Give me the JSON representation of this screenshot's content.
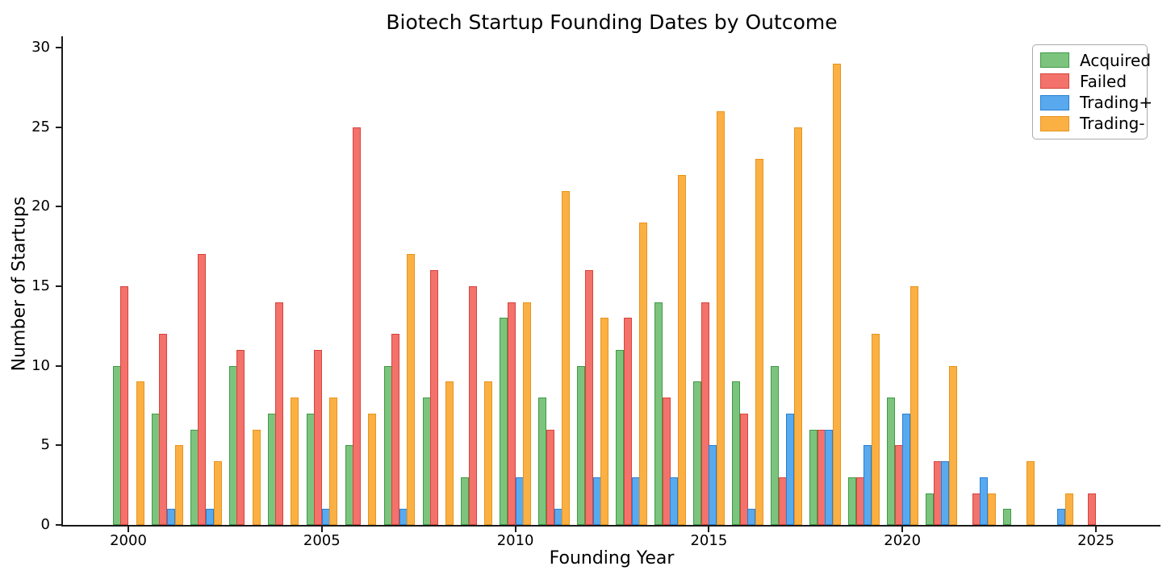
{
  "chart_data": {
    "type": "bar",
    "title": "Biotech Startup Founding Dates by Outcome",
    "xlabel": "Founding Year",
    "ylabel": "Number of Startups",
    "ylim": [
      0,
      30
    ],
    "yticks": [
      0,
      5,
      10,
      15,
      20,
      25,
      30
    ],
    "xticks": [
      2000,
      2005,
      2010,
      2015,
      2020,
      2025
    ],
    "grid": false,
    "legend_position": "upper right",
    "categories": [
      2000,
      2001,
      2002,
      2003,
      2004,
      2005,
      2006,
      2007,
      2008,
      2009,
      2010,
      2011,
      2012,
      2013,
      2014,
      2015,
      2016,
      2017,
      2018,
      2019,
      2020,
      2021,
      2022,
      2023,
      2024,
      2025
    ],
    "series": [
      {
        "name": "Acquired",
        "fill": "#7cc47e",
        "edge": "#3f9a46",
        "values": [
          10,
          7,
          6,
          10,
          7,
          7,
          5,
          10,
          8,
          3,
          13,
          8,
          10,
          11,
          14,
          9,
          9,
          10,
          6,
          3,
          8,
          2,
          0,
          1,
          0,
          0
        ]
      },
      {
        "name": "Failed",
        "fill": "#f3726b",
        "edge": "#d6453c",
        "values": [
          15,
          12,
          17,
          11,
          14,
          11,
          25,
          12,
          16,
          15,
          14,
          6,
          16,
          13,
          8,
          14,
          7,
          3,
          6,
          3,
          5,
          4,
          2,
          0,
          0,
          2
        ]
      },
      {
        "name": "Trading+",
        "fill": "#58a9ee",
        "edge": "#2a7fd0",
        "values": [
          0,
          1,
          1,
          0,
          0,
          1,
          0,
          1,
          0,
          0,
          3,
          1,
          3,
          3,
          3,
          5,
          1,
          7,
          6,
          5,
          7,
          4,
          3,
          0,
          1,
          0
        ]
      },
      {
        "name": "Trading-",
        "fill": "#fbb044",
        "edge": "#e8941c",
        "values": [
          9,
          5,
          4,
          6,
          8,
          8,
          7,
          17,
          9,
          9,
          14,
          21,
          13,
          19,
          22,
          26,
          23,
          25,
          29,
          12,
          15,
          10,
          2,
          4,
          2,
          0
        ]
      }
    ]
  }
}
